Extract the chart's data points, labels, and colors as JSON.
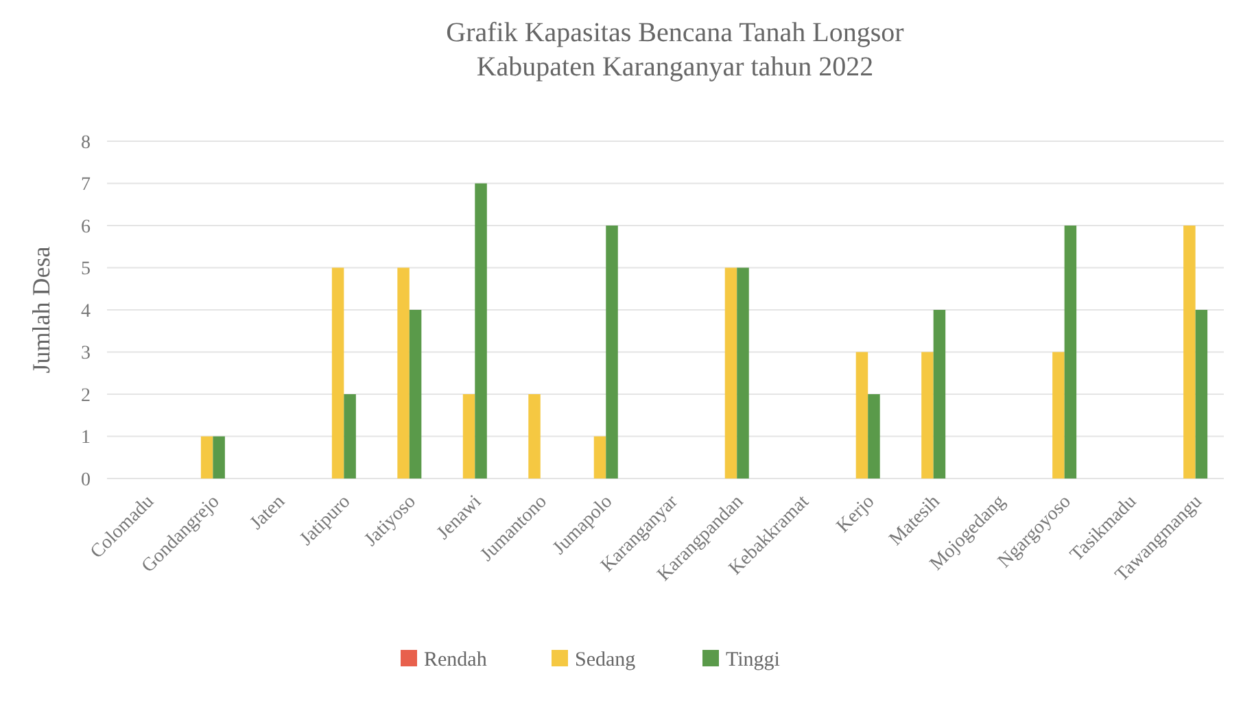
{
  "chart_data": {
    "type": "bar",
    "title": "Grafik Kapasitas Bencana Tanah Longsor\nKabupaten Karanganyar tahun 2022",
    "ylabel": "Jumlah Desa",
    "categories": [
      "Colomadu",
      "Gondangrejo",
      "Jaten",
      "Jatipuro",
      "Jatiyoso",
      "Jenawi",
      "Jumantono",
      "Jumapolo",
      "Karanganyar",
      "Karangpandan",
      "Kebakkramat",
      "Kerjo",
      "Matesih",
      "Mojogedang",
      "Ngargoyoso",
      "Tasikmadu",
      "Tawangmangu"
    ],
    "series": [
      {
        "name": "Rendah",
        "color": "#e8604c",
        "values": [
          0,
          0,
          0,
          0,
          0,
          0,
          0,
          0,
          0,
          0,
          0,
          0,
          0,
          0,
          0,
          0,
          0
        ]
      },
      {
        "name": "Sedang",
        "color": "#f5c842",
        "values": [
          0,
          1,
          0,
          5,
          5,
          2,
          2,
          1,
          0,
          5,
          0,
          3,
          3,
          0,
          3,
          0,
          6
        ]
      },
      {
        "name": "Tinggi",
        "color": "#5a9a4a",
        "values": [
          0,
          1,
          0,
          2,
          4,
          7,
          0,
          6,
          0,
          5,
          0,
          2,
          4,
          0,
          6,
          0,
          4
        ]
      }
    ],
    "ylim": [
      0,
      8
    ],
    "yticks": [
      0,
      1,
      2,
      3,
      4,
      5,
      6,
      7,
      8
    ],
    "grid": "y",
    "legend": "bottom"
  }
}
